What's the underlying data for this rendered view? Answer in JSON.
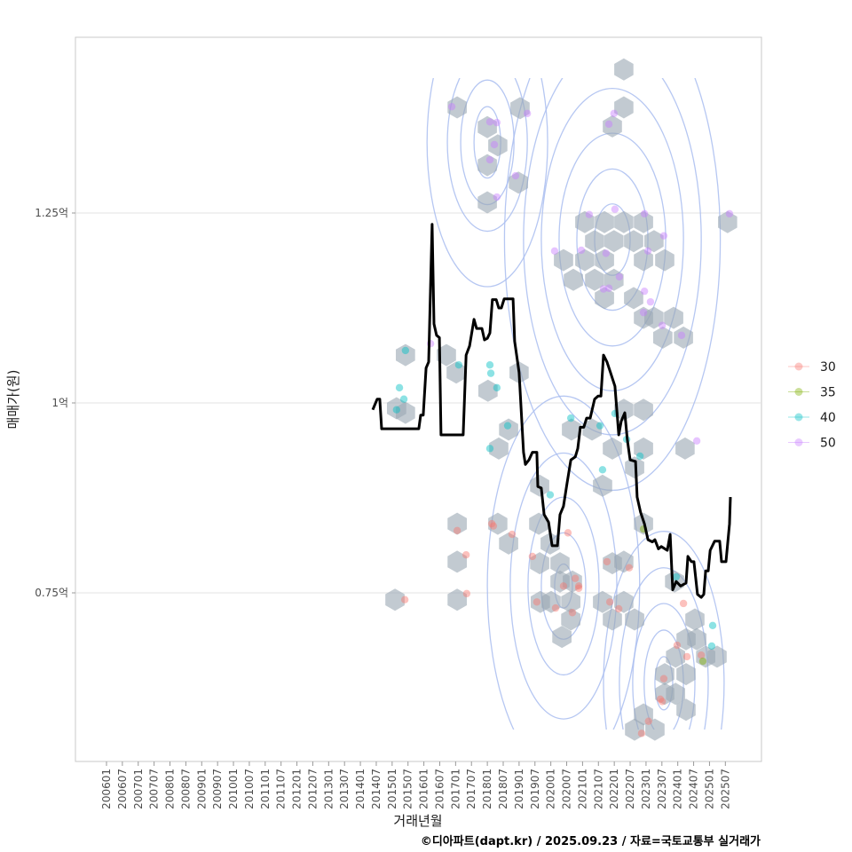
{
  "chart_data": {
    "type": "line",
    "title": "",
    "xlabel": "거래년월",
    "ylabel": "매매가(원)",
    "caption": "©디아파트(dapt.kr) / 2025.09.23 / 자료=국토교통부 실거래가",
    "xlim": [
      2005.85,
      2026.4
    ],
    "ylim": [
      0.53,
      1.485
    ],
    "x_ticks": [
      "200601",
      "200607",
      "200701",
      "200707",
      "200801",
      "200807",
      "200901",
      "200907",
      "201001",
      "201007",
      "201101",
      "201107",
      "201201",
      "201207",
      "201301",
      "201307",
      "201401",
      "201407",
      "201501",
      "201507",
      "201601",
      "201607",
      "201701",
      "201707",
      "201801",
      "201807",
      "201901",
      "201907",
      "202001",
      "202007",
      "202101",
      "202107",
      "202201",
      "202207",
      "202301",
      "202307",
      "202401",
      "202407",
      "202501",
      "202507"
    ],
    "y_ticks": [
      {
        "value": 0.75,
        "label": "0.75억"
      },
      {
        "value": 1.0,
        "label": "1억"
      },
      {
        "value": 1.25,
        "label": "1.25억"
      }
    ],
    "legend": {
      "position": "right",
      "entries": [
        {
          "label": "30",
          "color": "#F8766D"
        },
        {
          "label": "35",
          "color": "#7CAE00"
        },
        {
          "label": "40",
          "color": "#00BFC4"
        },
        {
          "label": "50",
          "color": "#C77CFF"
        }
      ]
    },
    "line_color": "#000000",
    "hex_color": "#9aa6b2",
    "contour_color": "#a9bdf0",
    "median_line": [
      [
        2014.39,
        0.991
      ],
      [
        2014.53,
        1.005
      ],
      [
        2014.61,
        1.005
      ],
      [
        2014.67,
        0.966
      ],
      [
        2015.84,
        0.966
      ],
      [
        2015.9,
        0.984
      ],
      [
        2015.98,
        0.984
      ],
      [
        2016.07,
        1.046
      ],
      [
        2016.15,
        1.054
      ],
      [
        2016.26,
        1.235
      ],
      [
        2016.32,
        1.104
      ],
      [
        2016.4,
        1.089
      ],
      [
        2016.49,
        1.086
      ],
      [
        2016.54,
        0.958
      ],
      [
        2017.24,
        0.958
      ],
      [
        2017.33,
        1.063
      ],
      [
        2017.44,
        1.075
      ],
      [
        2017.58,
        1.11
      ],
      [
        2017.66,
        1.098
      ],
      [
        2017.83,
        1.098
      ],
      [
        2017.91,
        1.083
      ],
      [
        2018.0,
        1.085
      ],
      [
        2018.08,
        1.092
      ],
      [
        2018.16,
        1.136
      ],
      [
        2018.28,
        1.136
      ],
      [
        2018.36,
        1.125
      ],
      [
        2018.44,
        1.125
      ],
      [
        2018.53,
        1.137
      ],
      [
        2018.81,
        1.137
      ],
      [
        2018.86,
        1.081
      ],
      [
        2019.0,
        1.04
      ],
      [
        2019.14,
        0.935
      ],
      [
        2019.2,
        0.919
      ],
      [
        2019.31,
        0.925
      ],
      [
        2019.42,
        0.935
      ],
      [
        2019.56,
        0.935
      ],
      [
        2019.59,
        0.89
      ],
      [
        2019.7,
        0.888
      ],
      [
        2019.79,
        0.853
      ],
      [
        2019.93,
        0.843
      ],
      [
        2020.04,
        0.812
      ],
      [
        2020.21,
        0.812
      ],
      [
        2020.29,
        0.853
      ],
      [
        2020.4,
        0.864
      ],
      [
        2020.51,
        0.894
      ],
      [
        2020.63,
        0.925
      ],
      [
        2020.77,
        0.929
      ],
      [
        2020.85,
        0.94
      ],
      [
        2020.93,
        0.968
      ],
      [
        2021.04,
        0.968
      ],
      [
        2021.13,
        0.98
      ],
      [
        2021.24,
        0.98
      ],
      [
        2021.38,
        1.005
      ],
      [
        2021.49,
        1.009
      ],
      [
        2021.58,
        1.009
      ],
      [
        2021.66,
        1.063
      ],
      [
        2021.77,
        1.054
      ],
      [
        2021.88,
        1.04
      ],
      [
        2022.02,
        1.022
      ],
      [
        2022.14,
        0.958
      ],
      [
        2022.22,
        0.976
      ],
      [
        2022.33,
        0.987
      ],
      [
        2022.41,
        0.952
      ],
      [
        2022.5,
        0.925
      ],
      [
        2022.67,
        0.923
      ],
      [
        2022.72,
        0.876
      ],
      [
        2022.83,
        0.856
      ],
      [
        2022.95,
        0.841
      ],
      [
        2023.06,
        0.82
      ],
      [
        2023.2,
        0.817
      ],
      [
        2023.28,
        0.82
      ],
      [
        2023.39,
        0.808
      ],
      [
        2023.48,
        0.811
      ],
      [
        2023.67,
        0.806
      ],
      [
        2023.76,
        0.827
      ],
      [
        2023.84,
        0.754
      ],
      [
        2023.95,
        0.765
      ],
      [
        2024.09,
        0.759
      ],
      [
        2024.26,
        0.763
      ],
      [
        2024.32,
        0.798
      ],
      [
        2024.43,
        0.791
      ],
      [
        2024.51,
        0.791
      ],
      [
        2024.62,
        0.748
      ],
      [
        2024.74,
        0.744
      ],
      [
        2024.82,
        0.748
      ],
      [
        2024.88,
        0.779
      ],
      [
        2024.96,
        0.779
      ],
      [
        2025.02,
        0.806
      ],
      [
        2025.16,
        0.818
      ],
      [
        2025.32,
        0.818
      ],
      [
        2025.38,
        0.791
      ],
      [
        2025.52,
        0.791
      ],
      [
        2025.63,
        0.841
      ],
      [
        2025.66,
        0.876
      ]
    ],
    "hexbins": [
      [
        2022.3,
        1.439
      ],
      [
        2017.05,
        1.389
      ],
      [
        2018.0,
        1.363
      ],
      [
        2019.03,
        1.388
      ],
      [
        2022.3,
        1.389
      ],
      [
        2021.94,
        1.364
      ],
      [
        2018.33,
        1.339
      ],
      [
        2018.0,
        1.313
      ],
      [
        2018.98,
        1.29
      ],
      [
        2018.0,
        1.264
      ],
      [
        2021.07,
        1.238
      ],
      [
        2021.69,
        1.238
      ],
      [
        2022.3,
        1.238
      ],
      [
        2022.92,
        1.238
      ],
      [
        2021.38,
        1.213
      ],
      [
        2021.99,
        1.213
      ],
      [
        2022.61,
        1.213
      ],
      [
        2023.25,
        1.213
      ],
      [
        2020.4,
        1.188
      ],
      [
        2021.07,
        1.188
      ],
      [
        2021.69,
        1.188
      ],
      [
        2023.59,
        1.188
      ],
      [
        2022.92,
        1.188
      ],
      [
        2020.71,
        1.162
      ],
      [
        2021.38,
        1.162
      ],
      [
        2021.99,
        1.162
      ],
      [
        2021.69,
        1.138
      ],
      [
        2022.61,
        1.138
      ],
      [
        2022.92,
        1.112
      ],
      [
        2023.25,
        1.112
      ],
      [
        2023.87,
        1.112
      ],
      [
        2023.53,
        1.086
      ],
      [
        2024.18,
        1.086
      ],
      [
        2025.57,
        1.238
      ],
      [
        2015.42,
        1.063
      ],
      [
        2016.71,
        1.063
      ],
      [
        2017.02,
        1.04
      ],
      [
        2015.42,
        0.987
      ],
      [
        2015.14,
        0.993
      ],
      [
        2018.02,
        1.016
      ],
      [
        2019.0,
        1.04
      ],
      [
        2018.67,
        0.965
      ],
      [
        2018.36,
        0.94
      ],
      [
        2020.65,
        0.965
      ],
      [
        2021.3,
        0.965
      ],
      [
        2022.3,
        0.991
      ],
      [
        2022.92,
        0.991
      ],
      [
        2021.94,
        0.94
      ],
      [
        2022.92,
        0.94
      ],
      [
        2022.64,
        0.915
      ],
      [
        2021.63,
        0.891
      ],
      [
        2019.65,
        0.891
      ],
      [
        2017.05,
        0.841
      ],
      [
        2018.33,
        0.841
      ],
      [
        2018.67,
        0.815
      ],
      [
        2019.62,
        0.841
      ],
      [
        2019.98,
        0.815
      ],
      [
        2020.29,
        0.789
      ],
      [
        2019.65,
        0.789
      ],
      [
        2020.68,
        0.765
      ],
      [
        2020.29,
        0.765
      ],
      [
        2019.67,
        0.738
      ],
      [
        2020.01,
        0.738
      ],
      [
        2020.63,
        0.738
      ],
      [
        2021.63,
        0.738
      ],
      [
        2022.3,
        0.738
      ],
      [
        2021.94,
        0.715
      ],
      [
        2022.64,
        0.715
      ],
      [
        2020.63,
        0.715
      ],
      [
        2020.35,
        0.692
      ],
      [
        2017.05,
        0.791
      ],
      [
        2017.05,
        0.741
      ],
      [
        2015.09,
        0.741
      ],
      [
        2021.94,
        0.789
      ],
      [
        2022.3,
        0.791
      ],
      [
        2022.92,
        0.841
      ],
      [
        2024.23,
        0.94
      ],
      [
        2023.9,
        0.765
      ],
      [
        2024.54,
        0.715
      ],
      [
        2024.26,
        0.689
      ],
      [
        2024.6,
        0.689
      ],
      [
        2024.88,
        0.666
      ],
      [
        2025.24,
        0.666
      ],
      [
        2023.93,
        0.666
      ],
      [
        2023.59,
        0.643
      ],
      [
        2024.26,
        0.643
      ],
      [
        2023.59,
        0.617
      ],
      [
        2023.93,
        0.617
      ],
      [
        2024.26,
        0.596
      ],
      [
        2022.92,
        0.59
      ],
      [
        2023.28,
        0.57
      ],
      [
        2022.64,
        0.57
      ]
    ],
    "points": [
      {
        "group": "50",
        "x": 2016.88,
        "y": 1.39
      },
      {
        "group": "50",
        "x": 2018.08,
        "y": 1.37
      },
      {
        "group": "50",
        "x": 2018.3,
        "y": 1.369
      },
      {
        "group": "50",
        "x": 2018.22,
        "y": 1.34
      },
      {
        "group": "50",
        "x": 2018.08,
        "y": 1.32
      },
      {
        "group": "50",
        "x": 2018.89,
        "y": 1.299
      },
      {
        "group": "50",
        "x": 2018.3,
        "y": 1.271
      },
      {
        "group": "50",
        "x": 2019.26,
        "y": 1.381
      },
      {
        "group": "50",
        "x": 2021.83,
        "y": 1.367
      },
      {
        "group": "50",
        "x": 2021.99,
        "y": 1.381
      },
      {
        "group": "50",
        "x": 2021.21,
        "y": 1.248
      },
      {
        "group": "50",
        "x": 2022.02,
        "y": 1.255
      },
      {
        "group": "50",
        "x": 2022.95,
        "y": 1.249
      },
      {
        "group": "50",
        "x": 2023.56,
        "y": 1.22
      },
      {
        "group": "50",
        "x": 2020.96,
        "y": 1.201
      },
      {
        "group": "50",
        "x": 2021.74,
        "y": 1.197
      },
      {
        "group": "50",
        "x": 2023.06,
        "y": 1.2
      },
      {
        "group": "50",
        "x": 2022.16,
        "y": 1.166
      },
      {
        "group": "50",
        "x": 2021.66,
        "y": 1.15
      },
      {
        "group": "50",
        "x": 2021.83,
        "y": 1.151
      },
      {
        "group": "50",
        "x": 2022.95,
        "y": 1.147
      },
      {
        "group": "50",
        "x": 2023.14,
        "y": 1.133
      },
      {
        "group": "50",
        "x": 2022.92,
        "y": 1.119
      },
      {
        "group": "50",
        "x": 2023.51,
        "y": 1.102
      },
      {
        "group": "50",
        "x": 2024.12,
        "y": 1.089
      },
      {
        "group": "50",
        "x": 2016.21,
        "y": 1.078
      },
      {
        "group": "50",
        "x": 2024.6,
        "y": 0.95
      },
      {
        "group": "50",
        "x": 2025.63,
        "y": 1.249
      },
      {
        "group": "50",
        "x": 2020.12,
        "y": 1.2
      },
      {
        "group": "40",
        "x": 2015.42,
        "y": 1.069
      },
      {
        "group": "40",
        "x": 2015.23,
        "y": 1.02
      },
      {
        "group": "40",
        "x": 2015.37,
        "y": 1.005
      },
      {
        "group": "40",
        "x": 2015.14,
        "y": 0.991
      },
      {
        "group": "40",
        "x": 2017.1,
        "y": 1.05
      },
      {
        "group": "40",
        "x": 2018.08,
        "y": 1.05
      },
      {
        "group": "40",
        "x": 2018.11,
        "y": 1.039
      },
      {
        "group": "40",
        "x": 2018.3,
        "y": 1.02
      },
      {
        "group": "40",
        "x": 2018.64,
        "y": 0.97
      },
      {
        "group": "40",
        "x": 2018.08,
        "y": 0.94
      },
      {
        "group": "40",
        "x": 2020.63,
        "y": 0.98
      },
      {
        "group": "40",
        "x": 2021.55,
        "y": 0.97
      },
      {
        "group": "40",
        "x": 2022.39,
        "y": 0.952
      },
      {
        "group": "40",
        "x": 2022.81,
        "y": 0.93
      },
      {
        "group": "40",
        "x": 2021.63,
        "y": 0.912
      },
      {
        "group": "40",
        "x": 2019.98,
        "y": 0.879
      },
      {
        "group": "40",
        "x": 2022.02,
        "y": 0.986
      },
      {
        "group": "40",
        "x": 2023.95,
        "y": 0.771
      },
      {
        "group": "40",
        "x": 2025.1,
        "y": 0.707
      },
      {
        "group": "40",
        "x": 2025.07,
        "y": 0.68
      },
      {
        "group": "30",
        "x": 2019.42,
        "y": 0.798
      },
      {
        "group": "30",
        "x": 2020.77,
        "y": 0.769
      },
      {
        "group": "30",
        "x": 2020.88,
        "y": 0.759
      },
      {
        "group": "30",
        "x": 2020.88,
        "y": 0.756
      },
      {
        "group": "30",
        "x": 2020.68,
        "y": 0.724
      },
      {
        "group": "30",
        "x": 2019.56,
        "y": 0.738
      },
      {
        "group": "30",
        "x": 2020.15,
        "y": 0.73
      },
      {
        "group": "30",
        "x": 2018.78,
        "y": 0.827
      },
      {
        "group": "30",
        "x": 2018.14,
        "y": 0.841
      },
      {
        "group": "30",
        "x": 2018.19,
        "y": 0.838
      },
      {
        "group": "30",
        "x": 2017.33,
        "y": 0.8
      },
      {
        "group": "30",
        "x": 2017.05,
        "y": 0.832
      },
      {
        "group": "30",
        "x": 2017.35,
        "y": 0.749
      },
      {
        "group": "30",
        "x": 2015.4,
        "y": 0.741
      },
      {
        "group": "30",
        "x": 2020.54,
        "y": 0.829
      },
      {
        "group": "30",
        "x": 2020.4,
        "y": 0.759
      },
      {
        "group": "30",
        "x": 2021.77,
        "y": 0.791
      },
      {
        "group": "30",
        "x": 2022.47,
        "y": 0.783
      },
      {
        "group": "30",
        "x": 2022.14,
        "y": 0.729
      },
      {
        "group": "30",
        "x": 2021.86,
        "y": 0.738
      },
      {
        "group": "30",
        "x": 2023.56,
        "y": 0.637
      },
      {
        "group": "30",
        "x": 2023.45,
        "y": 0.61
      },
      {
        "group": "30",
        "x": 2022.86,
        "y": 0.565
      },
      {
        "group": "30",
        "x": 2023.08,
        "y": 0.581
      },
      {
        "group": "30",
        "x": 2023.98,
        "y": 0.681
      },
      {
        "group": "30",
        "x": 2024.29,
        "y": 0.666
      },
      {
        "group": "30",
        "x": 2023.51,
        "y": 0.607
      },
      {
        "group": "30",
        "x": 2024.74,
        "y": 0.668
      },
      {
        "group": "30",
        "x": 2024.18,
        "y": 0.736
      },
      {
        "group": "35",
        "x": 2024.79,
        "y": 0.66
      },
      {
        "group": "35",
        "x": 2022.92,
        "y": 0.834
      }
    ],
    "contours": [
      {
        "cx": 2018.0,
        "cy": 1.343,
        "levels": [
          [
            0.42,
            0.047
          ],
          [
            0.84,
            0.082
          ],
          [
            1.26,
            0.117
          ],
          [
            1.9,
            0.19
          ]
        ]
      },
      {
        "cx": 2021.94,
        "cy": 1.215,
        "levels": [
          [
            0.56,
            0.047
          ],
          [
            1.12,
            0.093
          ],
          [
            1.68,
            0.14
          ],
          [
            2.24,
            0.199
          ],
          [
            2.8,
            0.257
          ],
          [
            3.4,
            0.33
          ]
        ]
      },
      {
        "cx": 2020.4,
        "cy": 0.759,
        "levels": [
          [
            0.28,
            0.029
          ],
          [
            0.7,
            0.07
          ],
          [
            1.12,
            0.117
          ],
          [
            1.68,
            0.175
          ],
          [
            2.4,
            0.25
          ]
        ]
      },
      {
        "cx": 2023.56,
        "cy": 0.631,
        "levels": [
          [
            0.28,
            0.035
          ],
          [
            0.62,
            0.07
          ],
          [
            0.98,
            0.105
          ],
          [
            1.4,
            0.152
          ],
          [
            1.9,
            0.2
          ]
        ]
      }
    ]
  }
}
